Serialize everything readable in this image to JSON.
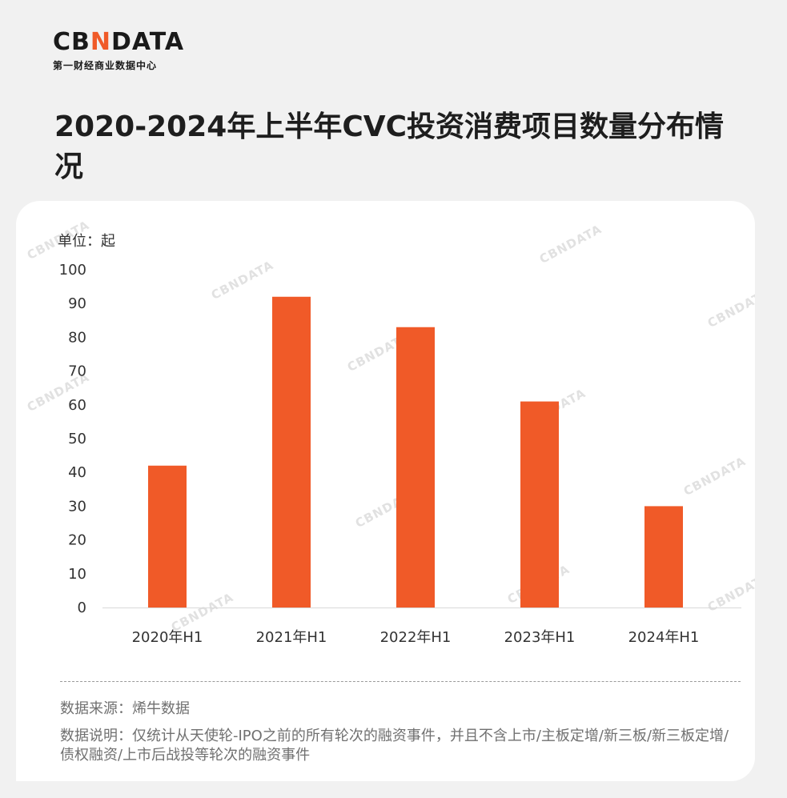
{
  "brand": {
    "logo_text": "CBNDATA",
    "logo_left": "CB",
    "logo_mid": "N",
    "logo_right": "DATA",
    "tagline": "第一财经商业数据中心"
  },
  "title": "2020-2024年上半年CVC投资消费项目数量分布情况",
  "accent_color": "#f05a28",
  "chart_data": {
    "type": "bar",
    "unit_label": "单位：起",
    "categories": [
      "2020年H1",
      "2021年H1",
      "2022年H1",
      "2023年H1",
      "2024年H1"
    ],
    "values": [
      42,
      92,
      83,
      61,
      30
    ],
    "y_ticks": [
      "0",
      "10",
      "20",
      "30",
      "40",
      "50",
      "60",
      "70",
      "80",
      "90",
      "100"
    ],
    "ylim": [
      0,
      100
    ],
    "grid": false,
    "bar_color": "#f05a28"
  },
  "footer": {
    "source": "数据来源：烯牛数据",
    "note": "数据说明：仅统计从天使轮-IPO之前的所有轮次的融资事件，并且不含上市/主板定增/新三板/新三板定增/债权融资/上市后战投等轮次的融资事件"
  }
}
